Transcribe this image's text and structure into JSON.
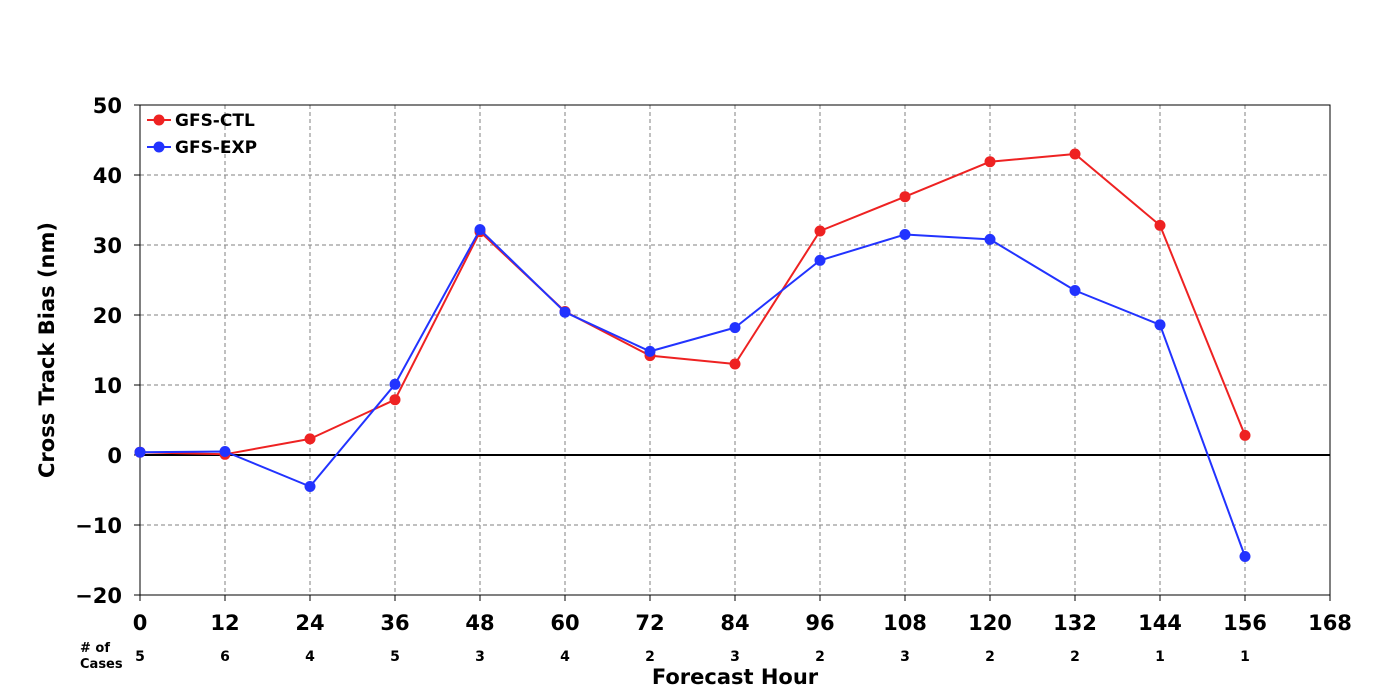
{
  "chart_data": {
    "type": "line",
    "xlabel": "Forecast Hour",
    "ylabel": "Cross Track Bias (nm)",
    "xlim": [
      0,
      168
    ],
    "ylim": [
      -20,
      50
    ],
    "xticks": [
      0,
      12,
      24,
      36,
      48,
      60,
      72,
      84,
      96,
      108,
      120,
      132,
      144,
      156,
      168
    ],
    "yticks": [
      -20,
      -10,
      0,
      10,
      20,
      30,
      40,
      50
    ],
    "ytick_labels": [
      "−20",
      "−10",
      "0",
      "10",
      "20",
      "30",
      "40",
      "50"
    ],
    "grid": true,
    "zero_line": true,
    "legend_position": "top-left",
    "series": [
      {
        "name": "GFS-CTL",
        "color": "#ee2222",
        "x": [
          0,
          12,
          24,
          36,
          48,
          60,
          72,
          84,
          96,
          108,
          120,
          132,
          144,
          156
        ],
        "y": [
          0.4,
          0.1,
          2.3,
          7.9,
          31.9,
          20.5,
          14.2,
          13.0,
          32.0,
          36.9,
          41.9,
          43.0,
          32.8,
          2.8
        ]
      },
      {
        "name": "GFS-EXP",
        "color": "#2233ff",
        "x": [
          0,
          12,
          24,
          36,
          48,
          60,
          72,
          84,
          96,
          108,
          120,
          132,
          144,
          156
        ],
        "y": [
          0.4,
          0.5,
          -4.5,
          10.1,
          32.2,
          20.4,
          14.8,
          18.2,
          27.8,
          31.5,
          30.8,
          23.5,
          18.6,
          -14.5
        ]
      }
    ],
    "cases": {
      "label_line1": "# of",
      "label_line2": "Cases",
      "x": [
        0,
        12,
        24,
        36,
        48,
        60,
        72,
        84,
        96,
        108,
        120,
        132,
        144,
        156
      ],
      "counts": [
        "5",
        "6",
        "4",
        "5",
        "3",
        "4",
        "2",
        "3",
        "2",
        "3",
        "2",
        "2",
        "1",
        "1"
      ]
    }
  }
}
